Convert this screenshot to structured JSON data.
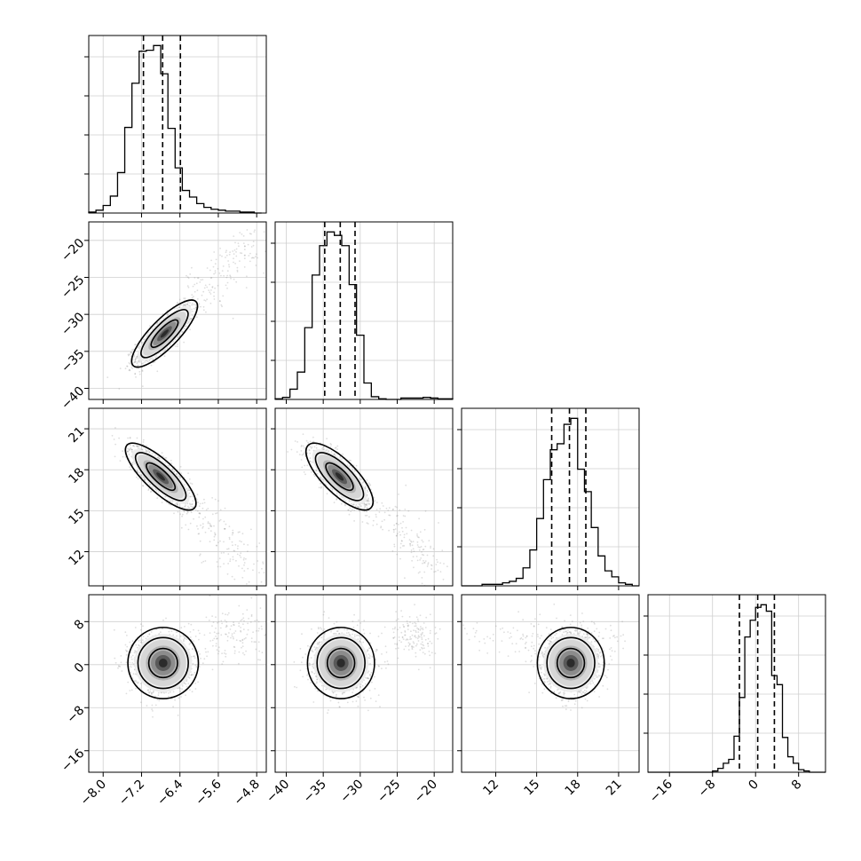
{
  "chart_data": {
    "type": "corner",
    "grid": true,
    "n_params": 4,
    "params": [
      {
        "range": [
          -8.3,
          -4.6
        ],
        "ticks": [
          -8.0,
          -7.2,
          -6.4,
          -5.6,
          -4.8
        ],
        "tick_labels": [
          "−8.0",
          "−7.2",
          "−6.4",
          "−5.6",
          "−4.8"
        ],
        "quantiles": [
          -7.16,
          -6.76,
          -6.39
        ],
        "hist": {
          "edges": [
            -8.3,
            -8.15,
            -8.0,
            -7.85,
            -7.7,
            -7.55,
            -7.4,
            -7.25,
            -7.1,
            -6.95,
            -6.8,
            -6.65,
            -6.5,
            -6.35,
            -6.2,
            -6.05,
            -5.9,
            -5.75,
            -5.6,
            -5.45,
            -5.3,
            -5.15,
            -5.0,
            -4.85,
            -4.7
          ],
          "counts": [
            1,
            3,
            8,
            18,
            43,
            91,
            138,
            172,
            173,
            178,
            148,
            90,
            48,
            24,
            17,
            10,
            6,
            4,
            3,
            2,
            2,
            1,
            1,
            0
          ]
        }
      },
      {
        "range": [
          -41.5,
          -17.5
        ],
        "ticks": [
          -40,
          -35,
          -30,
          -25,
          -20
        ],
        "tick_labels": [
          "−40",
          "−35",
          "−30",
          "−25",
          "−20"
        ],
        "quantiles": [
          -34.8,
          -32.7,
          -30.7
        ],
        "hist": {
          "edges": [
            -41.5,
            -40.5,
            -39.5,
            -38.5,
            -37.5,
            -36.5,
            -35.5,
            -34.5,
            -33.5,
            -32.5,
            -31.5,
            -30.5,
            -29.5,
            -28.5,
            -27.5,
            -26.5,
            -25.5,
            -24.5,
            -23.5,
            -22.5,
            -21.5,
            -20.5,
            -19.5,
            -18.5,
            -17.5
          ],
          "counts": [
            1,
            3,
            15,
            40,
            105,
            182,
            225,
            245,
            240,
            225,
            168,
            94,
            24,
            4,
            1,
            0,
            0,
            2,
            2,
            2,
            3,
            2,
            1,
            1
          ]
        }
      },
      {
        "range": [
          9.5,
          22.5
        ],
        "ticks": [
          12,
          15,
          18,
          21
        ],
        "tick_labels": [
          "12",
          "15",
          "18",
          "21"
        ],
        "quantiles": [
          16.1,
          17.4,
          18.6
        ],
        "hist": {
          "edges": [
            9.5,
            10.0,
            10.5,
            11.0,
            11.5,
            12.0,
            12.5,
            13.0,
            13.5,
            14.0,
            14.5,
            15.0,
            15.5,
            16.0,
            16.5,
            17.0,
            17.5,
            18.0,
            18.5,
            19.0,
            19.5,
            20.0,
            20.5,
            21.0,
            21.5,
            22.0,
            22.5
          ],
          "counts": [
            0,
            0,
            0,
            1,
            1,
            1,
            2,
            3,
            5,
            12,
            24,
            45,
            71,
            91,
            95,
            108,
            112,
            78,
            63,
            39,
            20,
            10,
            6,
            2,
            1,
            0
          ]
        }
      },
      {
        "range": [
          -20,
          13
        ],
        "ticks": [
          -16,
          -8,
          0,
          8
        ],
        "tick_labels": [
          "−16",
          "−8",
          "0",
          "8"
        ],
        "quantiles": [
          -3.0,
          0.4,
          3.5
        ],
        "hist": {
          "edges": [
            -20,
            -19,
            -18,
            -17,
            -16,
            -15,
            -14,
            -13,
            -12,
            -11,
            -10,
            -9,
            -8,
            -7,
            -6,
            -5,
            -4,
            -3,
            -2,
            -1,
            0,
            1,
            2,
            3,
            4,
            5,
            6,
            7,
            8,
            9,
            10,
            11,
            12,
            13
          ],
          "counts": [
            0,
            0,
            0,
            0,
            0,
            0,
            0,
            0,
            0,
            0,
            0,
            0,
            1,
            3,
            7,
            10,
            28,
            58,
            105,
            118,
            128,
            130,
            125,
            75,
            68,
            27,
            12,
            7,
            2,
            1,
            0,
            0,
            0
          ]
        }
      }
    ],
    "pairs": [
      {
        "x": 0,
        "y": 1,
        "center": [
          -6.72,
          -32.6
        ],
        "sd": [
          0.28,
          1.85
        ],
        "corr": 0.82,
        "tail": {
          "from": [
            -6.0,
            -27.5
          ],
          "to": [
            -4.8,
            -19.5
          ],
          "spread": [
            0.25,
            1.5
          ]
        }
      },
      {
        "x": 0,
        "y": 2,
        "center": [
          -6.8,
          17.5
        ],
        "sd": [
          0.3,
          1.0
        ],
        "corr": -0.8,
        "tail": {
          "from": [
            -6.0,
            14.5
          ],
          "to": [
            -4.9,
            10.5
          ],
          "spread": [
            0.25,
            1.0
          ]
        }
      },
      {
        "x": 1,
        "y": 2,
        "center": [
          -32.8,
          17.5
        ],
        "sd": [
          1.85,
          1.0
        ],
        "corr": -0.75,
        "tail": {
          "from": [
            -26.5,
            15.0
          ],
          "to": [
            -20.0,
            11.0
          ],
          "spread": [
            1.2,
            0.9
          ]
        }
      },
      {
        "x": 0,
        "y": 3,
        "center": [
          -6.75,
          0.3
        ],
        "sd": [
          0.3,
          2.7
        ],
        "corr": 0.0,
        "tail": {
          "from": [
            -5.7,
            4.5
          ],
          "to": [
            -4.8,
            6.5
          ],
          "spread": [
            0.3,
            2.5
          ]
        }
      },
      {
        "x": 1,
        "y": 3,
        "center": [
          -32.6,
          0.3
        ],
        "sd": [
          1.85,
          2.7
        ],
        "corr": 0.0,
        "tail": {
          "from": [
            -25.0,
            6.0
          ],
          "to": [
            -20.5,
            4.5
          ],
          "spread": [
            1.0,
            2.2
          ]
        }
      },
      {
        "x": 2,
        "y": 3,
        "center": [
          17.5,
          0.3
        ],
        "sd": [
          1.0,
          2.7
        ],
        "corr": 0.0,
        "tail": {
          "from": [
            11.0,
            5.0
          ],
          "to": [
            21.5,
            4.0
          ],
          "spread": [
            1.5,
            2.0
          ]
        }
      }
    ]
  }
}
